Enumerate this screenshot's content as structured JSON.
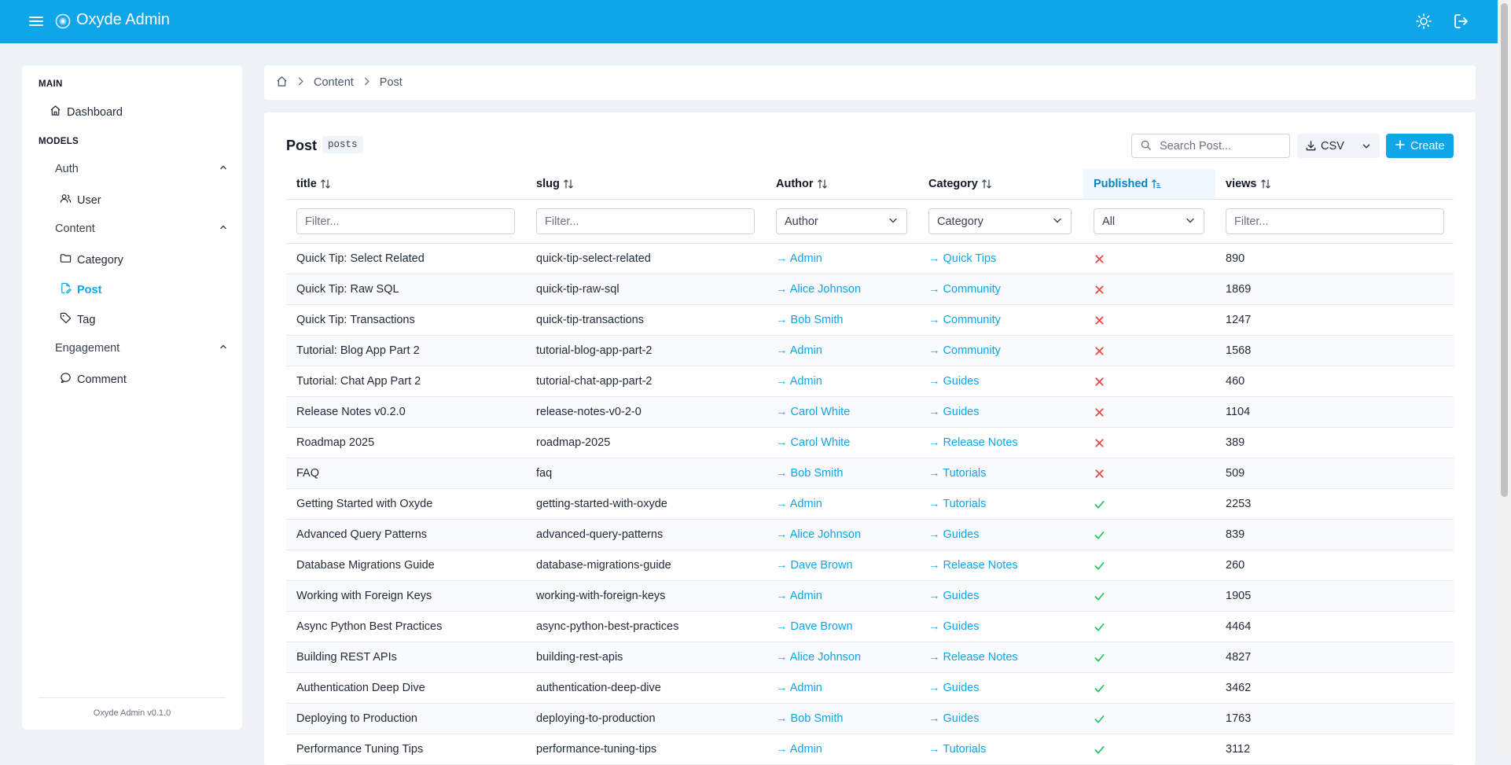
{
  "header": {
    "title": "Oxyde Admin",
    "menu_icon": "menu-icon",
    "theme_icon": "sun-icon",
    "logout_icon": "logout-icon",
    "bg_color": "#0ea5e9"
  },
  "sidebar": {
    "main_heading": "MAIN",
    "dashboard_label": "Dashboard",
    "models_heading": "MODELS",
    "groups": {
      "auth": {
        "label": "Auth",
        "items": {
          "user": "User"
        }
      },
      "content": {
        "label": "Content",
        "items": {
          "category": "Category",
          "post": "Post",
          "tag": "Tag"
        }
      },
      "engagement": {
        "label": "Engagement",
        "items": {
          "comment": "Comment"
        }
      }
    },
    "active_item": "Post",
    "version": "Oxyde Admin v0.1.0"
  },
  "breadcrumb": {
    "items": [
      "Content",
      "Post"
    ]
  },
  "panel": {
    "title": "Post",
    "badge": "posts",
    "search_placeholder": "Search Post...",
    "csv_label": "CSV",
    "create_label": "Create"
  },
  "table": {
    "columns": [
      "title",
      "slug",
      "Author",
      "Category",
      "Published",
      "views"
    ],
    "sorted_column": "Published",
    "filters": {
      "title_placeholder": "Filter...",
      "slug_placeholder": "Filter...",
      "author": "Author",
      "category": "Category",
      "published": "All",
      "views_placeholder": "Filter..."
    },
    "rows": [
      {
        "title": "Quick Tip: Select Related",
        "slug": "quick-tip-select-related",
        "author": "→ Admin",
        "category": "→ Quick Tips",
        "published": false,
        "views": "890"
      },
      {
        "title": "Quick Tip: Raw SQL",
        "slug": "quick-tip-raw-sql",
        "author": "→ Alice Johnson",
        "category": "→ Community",
        "published": false,
        "views": "1869"
      },
      {
        "title": "Quick Tip: Transactions",
        "slug": "quick-tip-transactions",
        "author": "→ Bob Smith",
        "category": "→ Community",
        "published": false,
        "views": "1247"
      },
      {
        "title": "Tutorial: Blog App Part 2",
        "slug": "tutorial-blog-app-part-2",
        "author": "→ Admin",
        "category": "→ Community",
        "published": false,
        "views": "1568"
      },
      {
        "title": "Tutorial: Chat App Part 2",
        "slug": "tutorial-chat-app-part-2",
        "author": "→ Admin",
        "category": "→ Guides",
        "published": false,
        "views": "460"
      },
      {
        "title": "Release Notes v0.2.0",
        "slug": "release-notes-v0-2-0",
        "author": "→ Carol White",
        "category": "→ Guides",
        "published": false,
        "views": "1104"
      },
      {
        "title": "Roadmap 2025",
        "slug": "roadmap-2025",
        "author": "→ Carol White",
        "category": "→ Release Notes",
        "published": false,
        "views": "389"
      },
      {
        "title": "FAQ",
        "slug": "faq",
        "author": "→ Bob Smith",
        "category": "→ Tutorials",
        "published": false,
        "views": "509"
      },
      {
        "title": "Getting Started with Oxyde",
        "slug": "getting-started-with-oxyde",
        "author": "→ Admin",
        "category": "→ Tutorials",
        "published": true,
        "views": "2253"
      },
      {
        "title": "Advanced Query Patterns",
        "slug": "advanced-query-patterns",
        "author": "→ Alice Johnson",
        "category": "→ Guides",
        "published": true,
        "views": "839"
      },
      {
        "title": "Database Migrations Guide",
        "slug": "database-migrations-guide",
        "author": "→ Dave Brown",
        "category": "→ Release Notes",
        "published": true,
        "views": "260"
      },
      {
        "title": "Working with Foreign Keys",
        "slug": "working-with-foreign-keys",
        "author": "→ Admin",
        "category": "→ Guides",
        "published": true,
        "views": "1905"
      },
      {
        "title": "Async Python Best Practices",
        "slug": "async-python-best-practices",
        "author": "→ Dave Brown",
        "category": "→ Guides",
        "published": true,
        "views": "4464"
      },
      {
        "title": "Building REST APIs",
        "slug": "building-rest-apis",
        "author": "→ Alice Johnson",
        "category": "→ Release Notes",
        "published": true,
        "views": "4827"
      },
      {
        "title": "Authentication Deep Dive",
        "slug": "authentication-deep-dive",
        "author": "→ Admin",
        "category": "→ Guides",
        "published": true,
        "views": "3462"
      },
      {
        "title": "Deploying to Production",
        "slug": "deploying-to-production",
        "author": "→ Bob Smith",
        "category": "→ Guides",
        "published": true,
        "views": "1763"
      },
      {
        "title": "Performance Tuning Tips",
        "slug": "performance-tuning-tips",
        "author": "→ Admin",
        "category": "→ Tutorials",
        "published": true,
        "views": "3112"
      }
    ]
  },
  "colors": {
    "accent": "#0ea5e9",
    "published_true": "#22c55e",
    "published_false": "#ef4444"
  }
}
